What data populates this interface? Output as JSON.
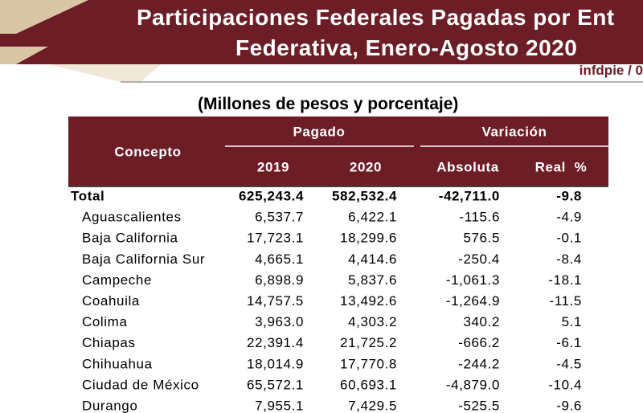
{
  "header": {
    "title_line1": "Participaciones Federales Pagadas por Ent",
    "title_line2": "Federativa, Enero-Agosto 2020",
    "tag": "infdpie / 0"
  },
  "table": {
    "caption": "(Millones de pesos y porcentaje)",
    "headers": {
      "concept": "Concepto",
      "group1": "Pagado",
      "group2": "Variación",
      "columns": [
        "2019",
        "2020",
        "Absoluta",
        "Real  %"
      ]
    },
    "rows": [
      [
        "Total",
        "625,243.4",
        "582,532.4",
        "-42,711.0",
        "-9.8"
      ],
      [
        "Aguascalientes",
        "6,537.7",
        "6,422.1",
        "-115.6",
        "-4.9"
      ],
      [
        "Baja California",
        "17,723.1",
        "18,299.6",
        "576.5",
        "-0.1"
      ],
      [
        "Baja California Sur",
        "4,665.1",
        "4,414.6",
        "-250.4",
        "-8.4"
      ],
      [
        "Campeche",
        "6,898.9",
        "5,837.6",
        "-1,061.3",
        "-18.1"
      ],
      [
        "Coahuila",
        "14,757.5",
        "13,492.6",
        "-1,264.9",
        "-11.5"
      ],
      [
        "Colima",
        "3,963.0",
        "4,303.2",
        "340.2",
        "5.1"
      ],
      [
        "Chiapas",
        "22,391.4",
        "21,725.2",
        "-666.2",
        "-6.1"
      ],
      [
        "Chihuahua",
        "18,014.9",
        "17,770.8",
        "-244.2",
        "-4.5"
      ],
      [
        "Ciudad de México",
        "65,572.1",
        "60,693.1",
        "-4,879.0",
        "-10.4"
      ],
      [
        "Durango",
        "7,955.1",
        "7,429.5",
        "-525.5",
        "-9.6"
      ]
    ]
  }
}
